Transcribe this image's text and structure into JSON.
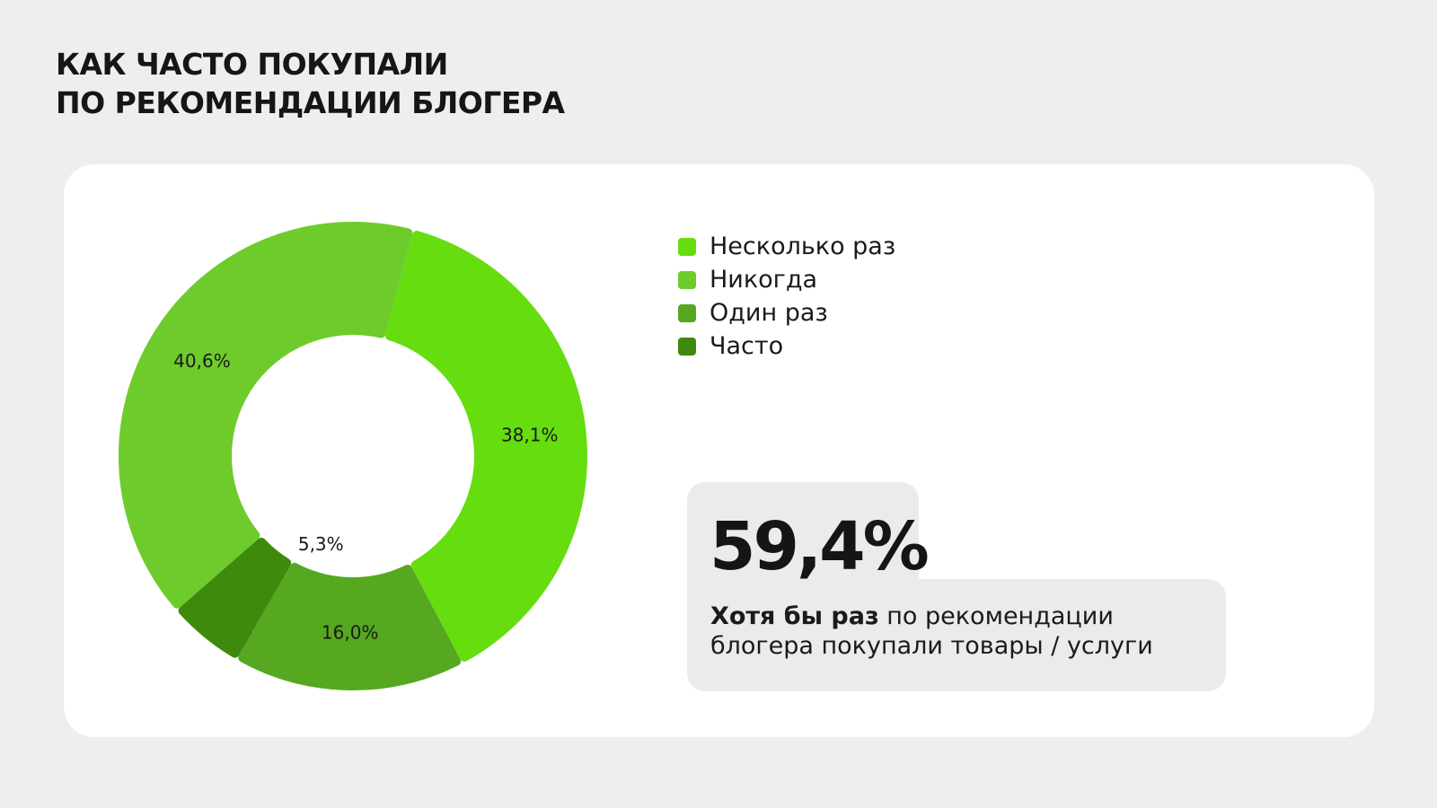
{
  "page": {
    "title_lines": [
      "КАК ЧАСТО ПОКУПАЛИ",
      "ПО РЕКОМЕНДАЦИИ БЛОГЕРА"
    ]
  },
  "chart_data": {
    "type": "pie",
    "title": "",
    "slices": [
      {
        "label": "Несколько раз",
        "value": 38.1,
        "display": "38,1%",
        "color": "#66dd0f"
      },
      {
        "label": "Один раз",
        "value": 16.0,
        "display": "16,0%",
        "color": "#55a81f"
      },
      {
        "label": "Часто",
        "value": 5.3,
        "display": "5,3%",
        "color": "#3d8a0c"
      },
      {
        "label": "Никогда",
        "value": 40.6,
        "display": "40,6%",
        "color": "#6ecb2c"
      }
    ],
    "legend": [
      {
        "label": "Несколько раз",
        "color": "#66dd0f"
      },
      {
        "label": "Никогда",
        "color": "#6ecb2c"
      },
      {
        "label": "Один раз",
        "color": "#55a81f"
      },
      {
        "label": "Часто",
        "color": "#3d8a0c"
      }
    ],
    "legend_position": "right",
    "hole": true
  },
  "highlight": {
    "value": "59,4%",
    "text_bold": "Хотя бы раз",
    "text_rest": " по рекомендации блогера покупали товары / услуги"
  }
}
